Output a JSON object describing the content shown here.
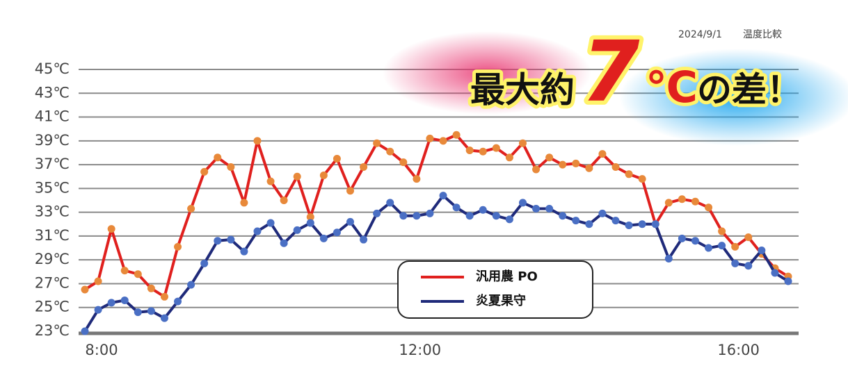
{
  "chart_data": {
    "type": "line",
    "date": "2024/9/1",
    "title": "温度比較",
    "annotation": {
      "prefix": "最大約",
      "number": "7",
      "unit": "℃",
      "suffix": "の差！"
    },
    "categories": [
      "8:00",
      null,
      null,
      null,
      null,
      null,
      null,
      null,
      null,
      null,
      null,
      null,
      null,
      null,
      null,
      null,
      null,
      null,
      null,
      null,
      null,
      null,
      null,
      null,
      "12:00",
      null,
      null,
      null,
      null,
      null,
      null,
      null,
      null,
      null,
      null,
      null,
      null,
      null,
      null,
      null,
      null,
      null,
      null,
      null,
      null,
      null,
      null,
      null,
      "16:00",
      null,
      null,
      null,
      null,
      null
    ],
    "series": [
      {
        "name": "汎用農 PO",
        "color": "#e0201e",
        "marker_color": "#e8893a",
        "values": [
          26.5,
          27.2,
          31.6,
          28.1,
          27.8,
          26.6,
          25.9,
          30.1,
          33.3,
          36.4,
          37.6,
          36.8,
          33.8,
          39.0,
          35.6,
          34.0,
          36.0,
          32.6,
          36.1,
          37.5,
          34.8,
          36.8,
          38.8,
          38.1,
          37.2,
          35.8,
          39.2,
          39.0,
          39.5,
          38.2,
          38.1,
          38.4,
          37.6,
          38.8,
          36.6,
          37.6,
          37.0,
          37.1,
          36.7,
          37.9,
          36.8,
          36.2,
          35.8,
          32.0,
          33.8,
          34.1,
          33.9,
          33.4,
          31.4,
          30.1,
          30.9,
          29.5,
          28.3,
          27.6
        ]
      },
      {
        "name": "炎夏果守",
        "color": "#1f2a7a",
        "marker_color": "#4a6fc4",
        "values": [
          23.0,
          24.8,
          25.4,
          25.6,
          24.6,
          24.7,
          24.1,
          25.5,
          26.9,
          28.7,
          30.6,
          30.7,
          29.7,
          31.4,
          32.1,
          30.4,
          31.5,
          32.1,
          30.8,
          31.3,
          32.2,
          30.7,
          32.9,
          33.8,
          32.7,
          32.7,
          32.9,
          34.4,
          33.4,
          32.7,
          33.2,
          32.7,
          32.4,
          33.8,
          33.3,
          33.3,
          32.7,
          32.3,
          32.0,
          32.9,
          32.3,
          31.9,
          32.0,
          32.0,
          29.1,
          30.8,
          30.6,
          30.0,
          30.2,
          28.7,
          28.5,
          29.8,
          27.9,
          27.2
        ]
      }
    ],
    "ylim": [
      23,
      45
    ],
    "yticks": [
      {
        "value": 23,
        "label": "23℃"
      },
      {
        "value": 25,
        "label": "25℃"
      },
      {
        "value": 27,
        "label": "27℃"
      },
      {
        "value": 29,
        "label": "29℃"
      },
      {
        "value": 31,
        "label": "31℃"
      },
      {
        "value": 33,
        "label": "33℃"
      },
      {
        "value": 35,
        "label": "35℃"
      },
      {
        "value": 37,
        "label": "37℃"
      },
      {
        "value": 39,
        "label": "39℃"
      },
      {
        "value": 41,
        "label": "41℃"
      },
      {
        "value": 43,
        "label": "43℃"
      },
      {
        "value": 45,
        "label": "45℃"
      }
    ],
    "grid": true
  }
}
